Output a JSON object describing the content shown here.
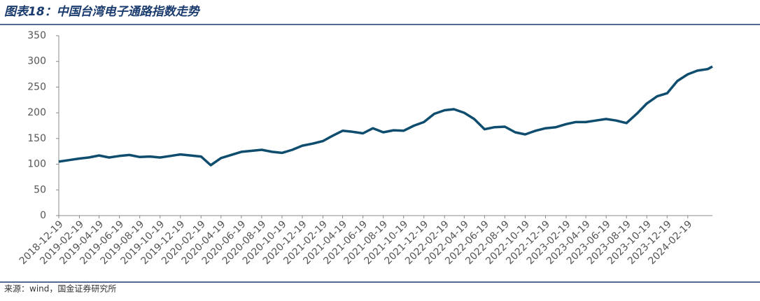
{
  "chart_data": {
    "type": "line",
    "title": "图表18：中国台湾电子通路指数走势",
    "source": "来源：wind，国金证券研究所",
    "x": [
      "2018-12-19",
      "2019-01-19",
      "2019-02-19",
      "2019-03-19",
      "2019-04-19",
      "2019-05-19",
      "2019-06-19",
      "2019-07-19",
      "2019-08-19",
      "2019-09-19",
      "2019-10-19",
      "2019-11-19",
      "2019-12-19",
      "2020-01-19",
      "2020-02-19",
      "2020-03-19",
      "2020-04-19",
      "2020-05-19",
      "2020-06-19",
      "2020-07-19",
      "2020-08-19",
      "2020-09-19",
      "2020-10-19",
      "2020-11-19",
      "2020-12-19",
      "2021-01-19",
      "2021-02-19",
      "2021-03-19",
      "2021-04-19",
      "2021-05-19",
      "2021-06-19",
      "2021-07-19",
      "2021-08-19",
      "2021-09-19",
      "2021-10-19",
      "2021-11-19",
      "2021-12-19",
      "2022-01-19",
      "2022-02-19",
      "2022-03-19",
      "2022-04-19",
      "2022-05-19",
      "2022-06-19",
      "2022-07-19",
      "2022-08-19",
      "2022-09-19",
      "2022-10-19",
      "2022-11-19",
      "2022-12-19",
      "2023-01-19",
      "2023-02-19",
      "2023-03-19",
      "2023-04-19",
      "2023-05-19",
      "2023-06-19",
      "2023-07-19",
      "2023-08-19",
      "2023-09-19",
      "2023-10-19",
      "2023-11-19",
      "2023-12-19",
      "2024-01-19",
      "2024-02-19",
      "2024-03-19",
      "2024-04-19",
      "2024-05-03"
    ],
    "series": [
      {
        "color": "#0e4d6e",
        "values": [
          105,
          108,
          111,
          113,
          117,
          113,
          116,
          118,
          114,
          115,
          113,
          116,
          119,
          117,
          115,
          98,
          112,
          118,
          124,
          126,
          128,
          124,
          122,
          128,
          136,
          140,
          145,
          155,
          165,
          163,
          160,
          170,
          162,
          166,
          165,
          175,
          182,
          198,
          205,
          207,
          200,
          188,
          168,
          172,
          173,
          162,
          158,
          165,
          170,
          172,
          178,
          182,
          182,
          185,
          188,
          185,
          180,
          198,
          218,
          232,
          238,
          262,
          275,
          282,
          285,
          290
        ]
      }
    ],
    "xlim": [
      "2018-12-19",
      "2024-05-03"
    ],
    "xticks": [
      "2018-12-19",
      "2019-02-19",
      "2019-04-19",
      "2019-06-19",
      "2019-08-19",
      "2019-10-19",
      "2019-12-19",
      "2020-02-19",
      "2020-04-19",
      "2020-06-19",
      "2020-08-19",
      "2020-10-19",
      "2020-12-19",
      "2021-02-19",
      "2021-04-19",
      "2021-06-19",
      "2021-08-19",
      "2021-10-19",
      "2021-12-19",
      "2022-02-19",
      "2022-04-19",
      "2022-06-19",
      "2022-08-19",
      "2022-10-19",
      "2022-12-19",
      "2023-02-19",
      "2023-04-19",
      "2023-06-19",
      "2023-08-19",
      "2023-10-19",
      "2023-12-19",
      "2024-02-19"
    ],
    "ylim": [
      0,
      350
    ],
    "yticks": [
      0,
      50,
      100,
      150,
      200,
      250,
      300,
      350
    ]
  }
}
